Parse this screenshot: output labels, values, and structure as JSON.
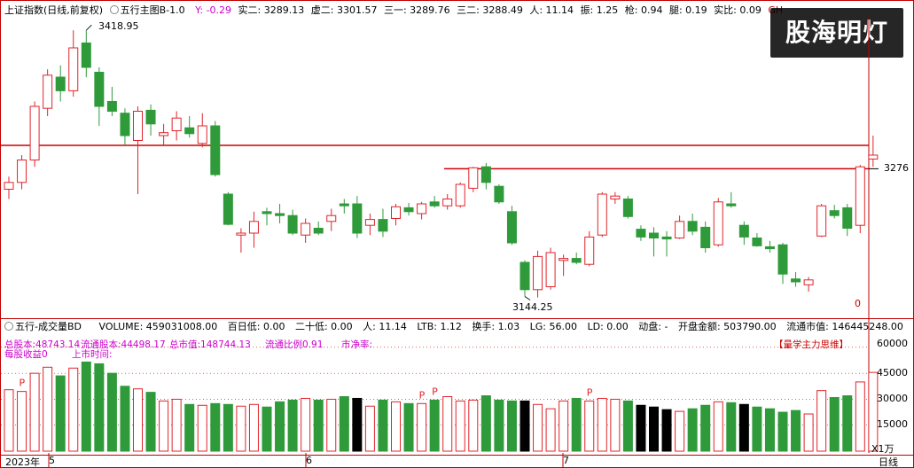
{
  "header": {
    "title": "上证指数(日线,前复权)",
    "indicator": "五行主图B-1.0",
    "y": "Y: -0.29",
    "shi2": "实二: 3289.13",
    "xu2": "虚二: 3301.57",
    "san1": "三一: 3289.76",
    "san2": "三二: 3288.49",
    "ren": "人: 11.14",
    "zhen": "振: 1.25",
    "qiang": "枪: 0.94",
    "tui": "腿: 0.19",
    "shibi": "实比: 0.09",
    "gh": "GH"
  },
  "watermark": "股海明灯",
  "price_axis": {
    "label_3276": "3276",
    "label_0": "0",
    "high_label": "3418.95",
    "low_label": "3144.25"
  },
  "volume_header": {
    "name": "五行-成交量BD",
    "volume": "VOLUME: 459031008.00",
    "bairidi": "百日低: 0.00",
    "ershidi": "二十低: 0.00",
    "ren": "人: 11.14",
    "ltb": "LTB: 1.12",
    "huanshou": "换手: 1.03",
    "lg": "LG: 56.00",
    "ld": "LD: 0.00",
    "dongpan": "动盘: -",
    "kaipan": "开盘金额: 503790.00",
    "liutong": "流通市值: 146445248.00",
    "cheng": "成交"
  },
  "financial": {
    "line1_a": "总股本:48743.14",
    "line1_b": "流通股本:44498.17",
    "line1_c": "总市值:148744.13",
    "line1_d": "流通比例0.91",
    "line1_e": "市净率:",
    "line2_a": "每股收益0",
    "line2_b": "上市时间:",
    "tag": "【量学主力思维】"
  },
  "volume_axis": {
    "v60000": "60000",
    "v45000": "45000",
    "v30000": "30000",
    "v15000": "15000",
    "unit": "X1万"
  },
  "p_marker": "P",
  "time_axis": {
    "year": "2023年",
    "m5": "5",
    "m6": "6",
    "m7": "7",
    "period": "日线"
  },
  "colors": {
    "up": "#e0242b",
    "down": "#2f9a3a",
    "black": "#000000",
    "hline": "#cc0000",
    "blue": "#0000cc"
  },
  "chart_data": {
    "type": "candlestick",
    "price_range": [
      3130,
      3430
    ],
    "reference_lines": [
      3300,
      3276
    ],
    "candles": [
      {
        "o": 3255,
        "h": 3268,
        "l": 3245,
        "c": 3262,
        "v": 35500
      },
      {
        "o": 3262,
        "h": 3290,
        "l": 3255,
        "c": 3285,
        "v": 34500
      },
      {
        "o": 3285,
        "h": 3345,
        "l": 3278,
        "c": 3340,
        "v": 45000
      },
      {
        "o": 3338,
        "h": 3378,
        "l": 3330,
        "c": 3372,
        "v": 48500
      },
      {
        "o": 3370,
        "h": 3382,
        "l": 3345,
        "c": 3356,
        "v": 43500
      },
      {
        "o": 3356,
        "h": 3418,
        "l": 3350,
        "c": 3400,
        "v": 48000
      },
      {
        "o": 3405,
        "h": 3418,
        "l": 3370,
        "c": 3380,
        "v": 51500
      },
      {
        "o": 3375,
        "h": 3380,
        "l": 3320,
        "c": 3340,
        "v": 50500
      },
      {
        "o": 3345,
        "h": 3360,
        "l": 3330,
        "c": 3335,
        "v": 45000
      },
      {
        "o": 3333,
        "h": 3338,
        "l": 3300,
        "c": 3310,
        "v": 37500
      },
      {
        "o": 3305,
        "h": 3340,
        "l": 3250,
        "c": 3335,
        "v": 36000
      },
      {
        "o": 3336,
        "h": 3342,
        "l": 3310,
        "c": 3322,
        "v": 34000
      },
      {
        "o": 3310,
        "h": 3322,
        "l": 3300,
        "c": 3313,
        "v": 29000
      },
      {
        "o": 3315,
        "h": 3335,
        "l": 3305,
        "c": 3328,
        "v": 30000
      },
      {
        "o": 3318,
        "h": 3330,
        "l": 3308,
        "c": 3312,
        "v": 27000
      },
      {
        "o": 3302,
        "h": 3333,
        "l": 3298,
        "c": 3320,
        "v": 26500
      },
      {
        "o": 3320,
        "h": 3325,
        "l": 3268,
        "c": 3270,
        "v": 27500
      },
      {
        "o": 3250,
        "h": 3252,
        "l": 3218,
        "c": 3219,
        "v": 27000
      },
      {
        "o": 3208,
        "h": 3215,
        "l": 3190,
        "c": 3210,
        "v": 26000
      },
      {
        "o": 3210,
        "h": 3232,
        "l": 3195,
        "c": 3222,
        "v": 27000
      },
      {
        "o": 3232,
        "h": 3236,
        "l": 3218,
        "c": 3230,
        "v": 25500
      },
      {
        "o": 3230,
        "h": 3240,
        "l": 3220,
        "c": 3228,
        "v": 28500
      },
      {
        "o": 3228,
        "h": 3234,
        "l": 3208,
        "c": 3210,
        "v": 29500
      },
      {
        "o": 3208,
        "h": 3225,
        "l": 3200,
        "c": 3220,
        "v": 30500
      },
      {
        "o": 3215,
        "h": 3222,
        "l": 3208,
        "c": 3210,
        "v": 29500
      },
      {
        "o": 3222,
        "h": 3235,
        "l": 3212,
        "c": 3228,
        "v": 30000
      },
      {
        "o": 3240,
        "h": 3245,
        "l": 3230,
        "c": 3238,
        "v": 31500
      },
      {
        "o": 3240,
        "h": 3248,
        "l": 3205,
        "c": 3210,
        "v": 30500
      },
      {
        "o": 3218,
        "h": 3230,
        "l": 3208,
        "c": 3224,
        "v": 26000
      },
      {
        "o": 3224,
        "h": 3235,
        "l": 3206,
        "c": 3212,
        "v": 29500
      },
      {
        "o": 3225,
        "h": 3240,
        "l": 3218,
        "c": 3237,
        "v": 28500
      },
      {
        "o": 3236,
        "h": 3241,
        "l": 3228,
        "c": 3232,
        "v": 27500
      },
      {
        "o": 3230,
        "h": 3242,
        "l": 3224,
        "c": 3240,
        "v": 27500
      },
      {
        "o": 3242,
        "h": 3248,
        "l": 3236,
        "c": 3238,
        "v": 29500
      },
      {
        "o": 3238,
        "h": 3250,
        "l": 3234,
        "c": 3245,
        "v": 31500
      },
      {
        "o": 3238,
        "h": 3262,
        "l": 3236,
        "c": 3260,
        "v": 29000
      },
      {
        "o": 3256,
        "h": 3278,
        "l": 3252,
        "c": 3277,
        "v": 29500
      },
      {
        "o": 3278,
        "h": 3282,
        "l": 3255,
        "c": 3262,
        "v": 32000
      },
      {
        "o": 3258,
        "h": 3260,
        "l": 3240,
        "c": 3242,
        "v": 29500
      },
      {
        "o": 3232,
        "h": 3238,
        "l": 3198,
        "c": 3200,
        "v": 29000
      },
      {
        "o": 3180,
        "h": 3182,
        "l": 3145,
        "c": 3152,
        "v": 29000
      },
      {
        "o": 3152,
        "h": 3192,
        "l": 3144,
        "c": 3186,
        "v": 27000
      },
      {
        "o": 3155,
        "h": 3195,
        "l": 3152,
        "c": 3190,
        "v": 24500
      },
      {
        "o": 3182,
        "h": 3188,
        "l": 3166,
        "c": 3184,
        "v": 29000
      },
      {
        "o": 3184,
        "h": 3190,
        "l": 3178,
        "c": 3180,
        "v": 30500
      },
      {
        "o": 3178,
        "h": 3212,
        "l": 3176,
        "c": 3206,
        "v": 29000
      },
      {
        "o": 3208,
        "h": 3252,
        "l": 3206,
        "c": 3250,
        "v": 30500
      },
      {
        "o": 3245,
        "h": 3252,
        "l": 3240,
        "c": 3248,
        "v": 30000
      },
      {
        "o": 3245,
        "h": 3248,
        "l": 3225,
        "c": 3227,
        "v": 29000
      },
      {
        "o": 3214,
        "h": 3218,
        "l": 3202,
        "c": 3206,
        "v": 26500
      },
      {
        "o": 3210,
        "h": 3216,
        "l": 3186,
        "c": 3205,
        "v": 25500
      },
      {
        "o": 3206,
        "h": 3212,
        "l": 3186,
        "c": 3204,
        "v": 24000
      },
      {
        "o": 3205,
        "h": 3228,
        "l": 3204,
        "c": 3222,
        "v": 23000
      },
      {
        "o": 3222,
        "h": 3230,
        "l": 3208,
        "c": 3212,
        "v": 24500
      },
      {
        "o": 3216,
        "h": 3222,
        "l": 3190,
        "c": 3195,
        "v": 26500
      },
      {
        "o": 3198,
        "h": 3246,
        "l": 3196,
        "c": 3242,
        "v": 28500
      },
      {
        "o": 3240,
        "h": 3252,
        "l": 3236,
        "c": 3238,
        "v": 28000
      },
      {
        "o": 3218,
        "h": 3222,
        "l": 3198,
        "c": 3206,
        "v": 27000
      },
      {
        "o": 3205,
        "h": 3210,
        "l": 3196,
        "c": 3197,
        "v": 25500
      },
      {
        "o": 3196,
        "h": 3202,
        "l": 3190,
        "c": 3194,
        "v": 24500
      },
      {
        "o": 3198,
        "h": 3200,
        "l": 3158,
        "c": 3168,
        "v": 22500
      },
      {
        "o": 3163,
        "h": 3170,
        "l": 3155,
        "c": 3160,
        "v": 23500
      },
      {
        "o": 3157,
        "h": 3165,
        "l": 3150,
        "c": 3162,
        "v": 21500
      },
      {
        "o": 3207,
        "h": 3240,
        "l": 3206,
        "c": 3238,
        "v": 35000
      },
      {
        "o": 3233,
        "h": 3239,
        "l": 3225,
        "c": 3228,
        "v": 31000
      },
      {
        "o": 3236,
        "h": 3240,
        "l": 3207,
        "c": 3215,
        "v": 32000
      },
      {
        "o": 3218,
        "h": 3280,
        "l": 3210,
        "c": 3278,
        "v": 40000
      },
      {
        "o": 3286,
        "h": 3310,
        "l": 3278,
        "c": 3290,
        "v": 45500
      }
    ],
    "p_markers": [
      1,
      32,
      33,
      45
    ]
  }
}
